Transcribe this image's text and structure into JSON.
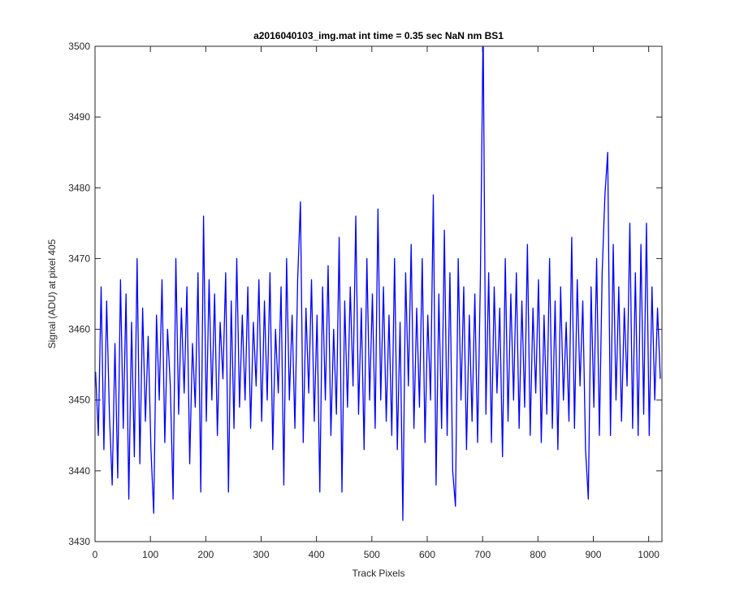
{
  "chart_data": {
    "type": "line",
    "title": "a2016040103_img.mat int time = 0.35 sec  NaN nm BS1",
    "xlabel": "Track Pixels",
    "ylabel": "Signal (ADU) at pixel 405",
    "xlim": [
      0,
      1024
    ],
    "ylim": [
      3430,
      3500
    ],
    "xticks": [
      0,
      100,
      200,
      300,
      400,
      500,
      600,
      700,
      800,
      900,
      1000
    ],
    "yticks": [
      3430,
      3440,
      3450,
      3460,
      3470,
      3480,
      3490,
      3500
    ],
    "grid": false,
    "x": [
      1,
      6,
      11,
      16,
      21,
      26,
      31,
      36,
      41,
      46,
      51,
      56,
      61,
      66,
      71,
      76,
      81,
      86,
      91,
      96,
      101,
      106,
      111,
      116,
      121,
      126,
      131,
      136,
      141,
      146,
      151,
      156,
      161,
      166,
      171,
      176,
      181,
      186,
      191,
      196,
      201,
      206,
      211,
      216,
      221,
      226,
      231,
      236,
      241,
      246,
      251,
      256,
      261,
      266,
      271,
      276,
      281,
      286,
      291,
      296,
      301,
      306,
      311,
      316,
      321,
      326,
      331,
      336,
      341,
      346,
      351,
      356,
      361,
      366,
      371,
      376,
      381,
      386,
      391,
      396,
      401,
      406,
      411,
      416,
      421,
      426,
      431,
      436,
      441,
      446,
      451,
      456,
      461,
      466,
      471,
      476,
      481,
      486,
      491,
      496,
      501,
      506,
      511,
      516,
      521,
      526,
      531,
      536,
      541,
      546,
      551,
      556,
      561,
      566,
      571,
      576,
      581,
      586,
      591,
      596,
      601,
      606,
      611,
      616,
      621,
      626,
      631,
      636,
      641,
      646,
      651,
      656,
      661,
      666,
      671,
      676,
      681,
      686,
      691,
      696,
      701,
      706,
      711,
      716,
      721,
      726,
      731,
      736,
      741,
      746,
      751,
      756,
      761,
      766,
      771,
      776,
      781,
      786,
      791,
      796,
      801,
      806,
      811,
      816,
      821,
      826,
      831,
      836,
      841,
      846,
      851,
      856,
      861,
      866,
      871,
      876,
      881,
      886,
      891,
      896,
      901,
      906,
      911,
      916,
      921,
      926,
      931,
      936,
      941,
      946,
      951,
      956,
      961,
      966,
      971,
      976,
      981,
      986,
      991,
      996,
      1001,
      1006,
      1011,
      1016,
      1021
    ],
    "series": [
      {
        "color": "#0000ff",
        "values": [
          3454,
          3445,
          3466,
          3443,
          3464,
          3448,
          3438,
          3458,
          3439,
          3467,
          3446,
          3465,
          3436,
          3461,
          3442,
          3470,
          3441,
          3463,
          3447,
          3459,
          3443,
          3434,
          3462,
          3450,
          3467,
          3444,
          3460,
          3452,
          3436,
          3470,
          3448,
          3463,
          3451,
          3466,
          3441,
          3458,
          3449,
          3468,
          3437,
          3476,
          3447,
          3467,
          3450,
          3465,
          3445,
          3461,
          3453,
          3468,
          3437,
          3464,
          3446,
          3470,
          3449,
          3462,
          3450,
          3466,
          3446,
          3461,
          3452,
          3467,
          3447,
          3464,
          3450,
          3468,
          3443,
          3460,
          3451,
          3466,
          3438,
          3470,
          3450,
          3462,
          3446,
          3467,
          3478,
          3444,
          3463,
          3451,
          3467,
          3447,
          3462,
          3437,
          3466,
          3450,
          3469,
          3445,
          3460,
          3448,
          3473,
          3437,
          3464,
          3449,
          3466,
          3452,
          3476,
          3448,
          3463,
          3443,
          3470,
          3450,
          3465,
          3446,
          3477,
          3450,
          3466,
          3447,
          3462,
          3445,
          3470,
          3443,
          3461,
          3433,
          3468,
          3452,
          3472,
          3446,
          3463,
          3449,
          3470,
          3444,
          3462,
          3450,
          3479,
          3438,
          3465,
          3446,
          3474,
          3445,
          3468,
          3440,
          3435,
          3470,
          3450,
          3466,
          3443,
          3462,
          3447,
          3465,
          3444,
          3467,
          3503,
          3448,
          3468,
          3444,
          3466,
          3451,
          3463,
          3442,
          3470,
          3447,
          3465,
          3450,
          3468,
          3446,
          3464,
          3449,
          3472,
          3445,
          3463,
          3451,
          3467,
          3444,
          3462,
          3448,
          3470,
          3446,
          3464,
          3443,
          3466,
          3450,
          3461,
          3447,
          3473,
          3446,
          3467,
          3452,
          3464,
          3443,
          3436,
          3466,
          3449,
          3470,
          3445,
          3468,
          3479,
          3485,
          3445,
          3472,
          3450,
          3466,
          3447,
          3463,
          3452,
          3475,
          3446,
          3468,
          3445,
          3472,
          3448,
          3475,
          3445,
          3466,
          3450,
          3463,
          3453
        ]
      }
    ]
  }
}
